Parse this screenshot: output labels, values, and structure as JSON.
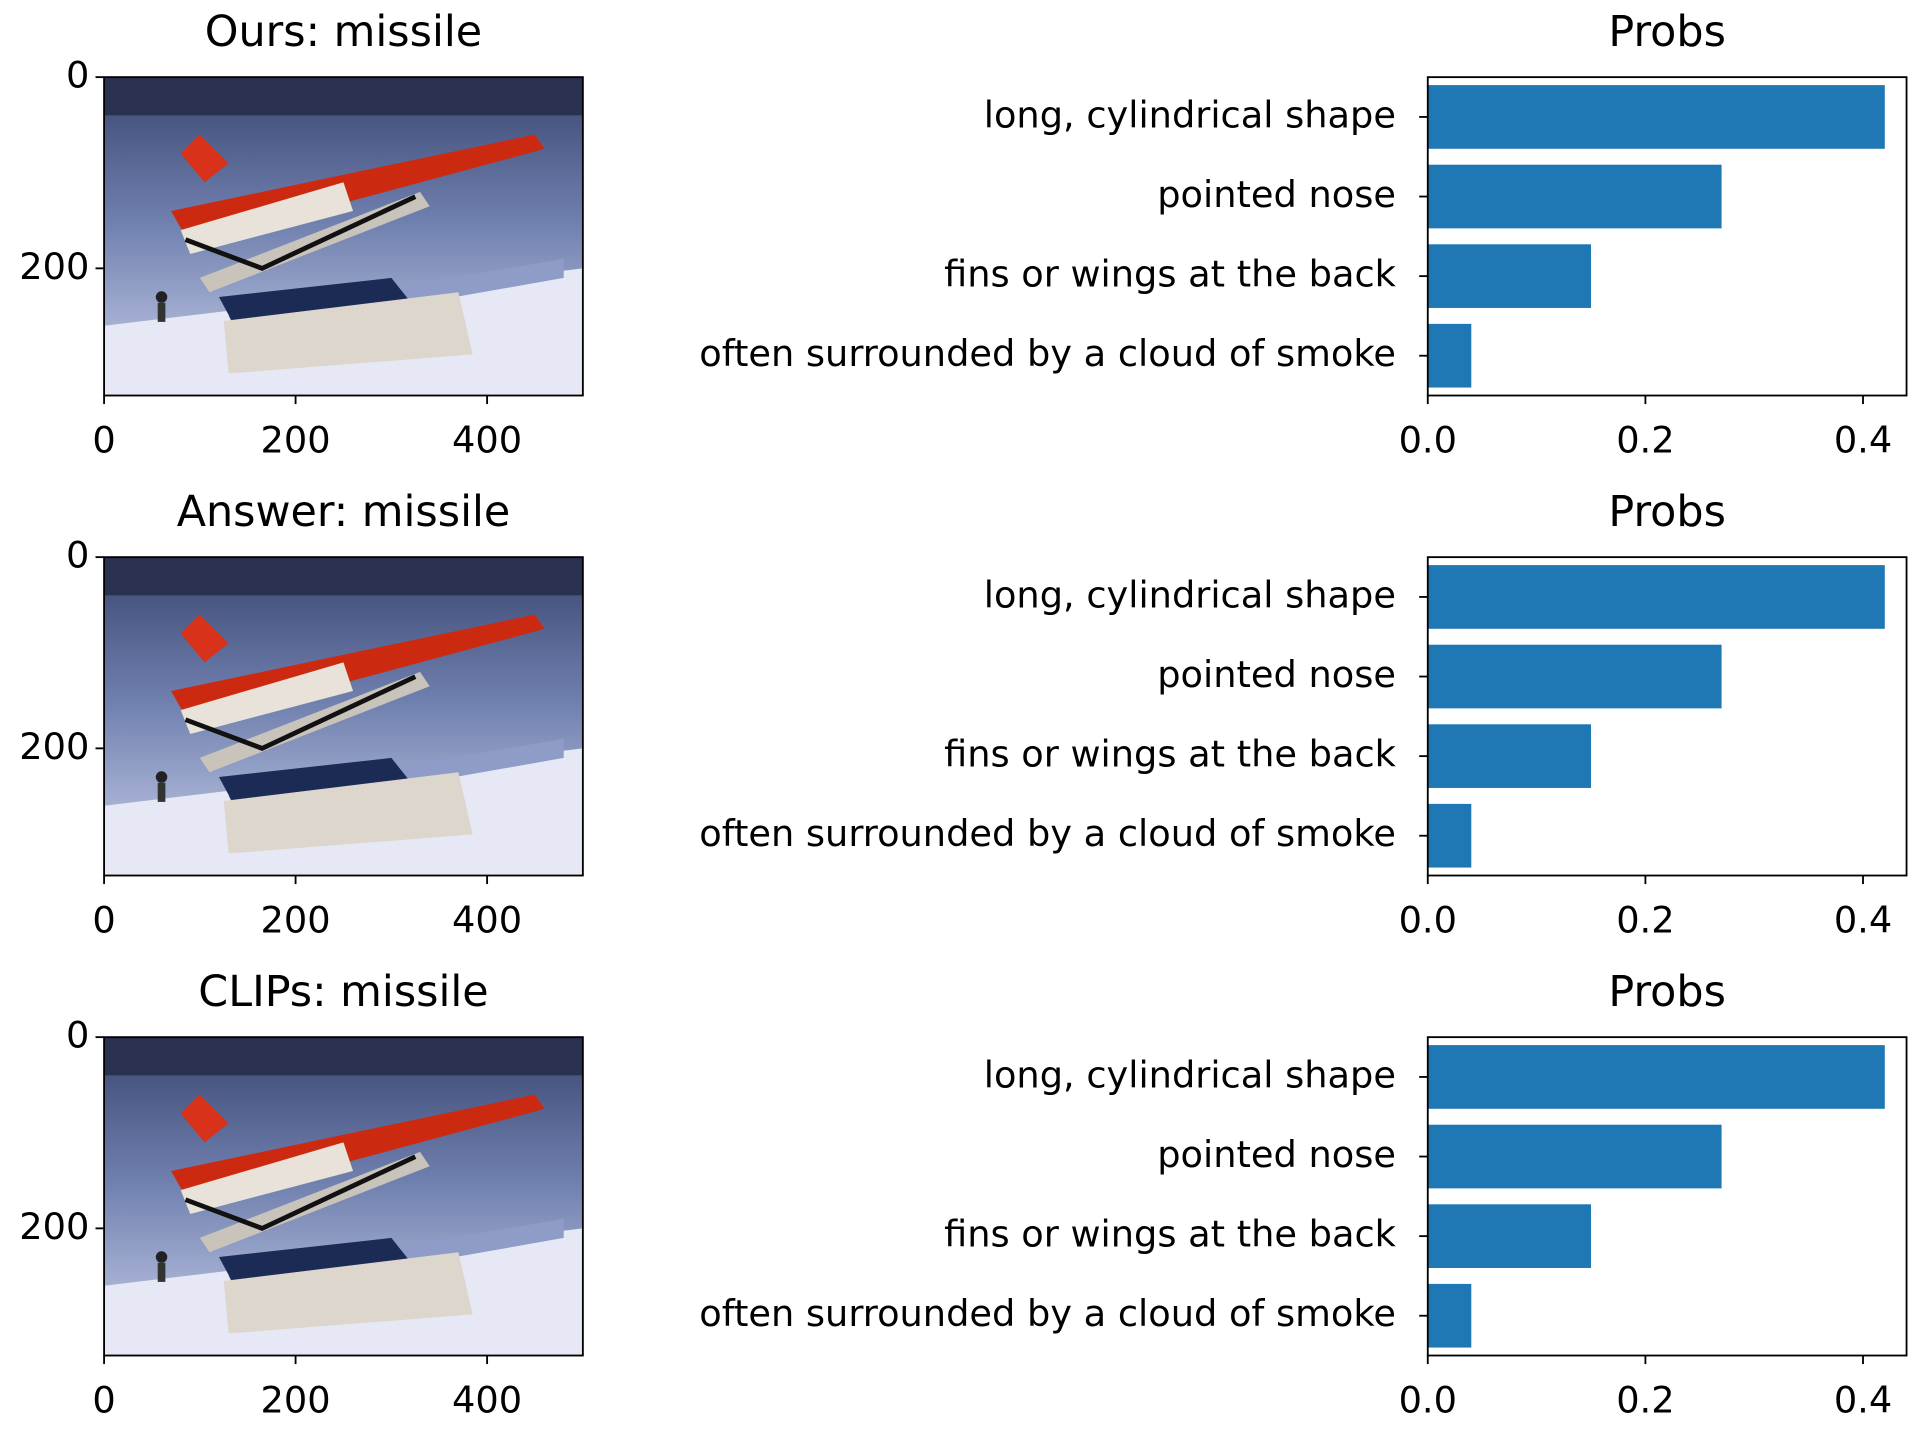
{
  "chart_data": [
    {
      "type": "image",
      "title": "Ours: missile",
      "xlim": [
        0,
        500
      ],
      "ylim": [
        333,
        0
      ],
      "xticks": [
        0,
        200,
        400
      ],
      "yticks": [
        0,
        200
      ]
    },
    {
      "type": "barh",
      "title": "Probs",
      "categories": [
        "long, cylindrical shape",
        "pointed nose",
        "fins or wings at the back",
        "often surrounded by a cloud of smoke"
      ],
      "values": [
        0.42,
        0.27,
        0.15,
        0.04
      ],
      "color": "#1f77b4",
      "xlim": [
        0,
        0.44
      ],
      "xticks": [
        {
          "value": 0,
          "label": "0.0"
        },
        0.2,
        0.4
      ]
    },
    {
      "type": "image",
      "title": "Answer: missile",
      "xlim": [
        0,
        500
      ],
      "ylim": [
        333,
        0
      ],
      "xticks": [
        0,
        200,
        400
      ],
      "yticks": [
        0,
        200
      ]
    },
    {
      "type": "barh",
      "title": "Probs",
      "categories": [
        "long, cylindrical shape",
        "pointed nose",
        "fins or wings at the back",
        "often surrounded by a cloud of smoke"
      ],
      "values": [
        0.42,
        0.27,
        0.15,
        0.04
      ],
      "color": "#1f77b4",
      "xlim": [
        0,
        0.44
      ],
      "xticks": [
        {
          "value": 0,
          "label": "0.0"
        },
        0.2,
        0.4
      ]
    },
    {
      "type": "image",
      "title": "CLIPs: missile",
      "xlim": [
        0,
        500
      ],
      "ylim": [
        333,
        0
      ],
      "xticks": [
        0,
        200,
        400
      ],
      "yticks": [
        0,
        200
      ]
    },
    {
      "type": "barh",
      "title": "Probs",
      "categories": [
        "long, cylindrical shape",
        "pointed nose",
        "fins or wings at the back",
        "often surrounded by a cloud of smoke"
      ],
      "values": [
        0.42,
        0.27,
        0.15,
        0.04
      ],
      "color": "#1f77b4",
      "xlim": [
        0,
        0.44
      ],
      "xticks": [
        {
          "value": 0,
          "label": "0.0"
        },
        0.2,
        0.4
      ]
    }
  ]
}
